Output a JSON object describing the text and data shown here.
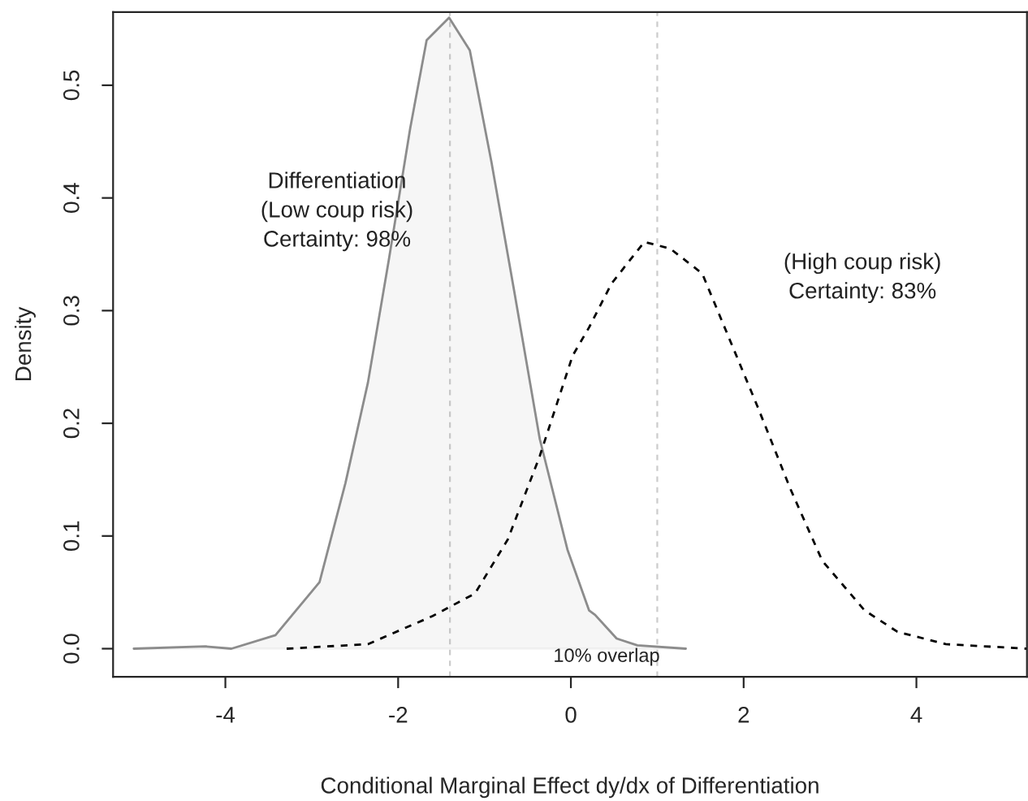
{
  "chart_data": {
    "type": "line",
    "xlabel": "Conditional Marginal Effect dy/dx of Differentiation",
    "ylabel": "Density",
    "xlim": [
      -5.3,
      5.28
    ],
    "ylim": [
      -0.025,
      0.565
    ],
    "xticks": [
      -4,
      -2,
      0,
      2,
      4
    ],
    "yticks": [
      {
        "value": 0,
        "label": "0.0"
      },
      {
        "value": 0.1,
        "label": "0.1"
      },
      {
        "value": 0.2,
        "label": "0.2"
      },
      {
        "value": 0.3,
        "label": "0.3"
      },
      {
        "value": 0.4,
        "label": "0.4"
      },
      {
        "value": 0.5,
        "label": "0.5"
      }
    ],
    "series": [
      {
        "type": "area",
        "color": "#8c8c8c",
        "line_style": "solid",
        "x": [
          -5.06,
          -4.23,
          -3.93,
          -3.42,
          -2.91,
          -2.61,
          -2.35,
          -2.11,
          -1.86,
          -1.67,
          -1.41,
          -1.17,
          -0.92,
          -0.66,
          -0.36,
          -0.04,
          0.21,
          0.28,
          0.53,
          0.77,
          1.33
        ],
        "values": [
          0,
          0.002,
          0,
          0.012,
          0.059,
          0.147,
          0.236,
          0.344,
          0.462,
          0.54,
          0.56,
          0.531,
          0.432,
          0.319,
          0.186,
          0.088,
          0.034,
          0.03,
          0.009,
          0.003,
          0
        ]
      },
      {
        "type": "line",
        "color": "#000000",
        "line_style": "dashed",
        "x": [
          -3.29,
          -2.35,
          -1.6,
          -1.11,
          -0.73,
          -0.36,
          0.02,
          0.21,
          0.47,
          0.85,
          1.15,
          1.52,
          1.84,
          2.16,
          2.54,
          2.91,
          3.4,
          3.78,
          4.34,
          5.28
        ],
        "values": [
          0,
          0.004,
          0.029,
          0.049,
          0.097,
          0.171,
          0.26,
          0.285,
          0.324,
          0.361,
          0.355,
          0.333,
          0.274,
          0.215,
          0.142,
          0.078,
          0.034,
          0.015,
          0.004,
          0
        ]
      }
    ],
    "ref_lines": [
      {
        "axis": "x",
        "value": -1.4,
        "color": "#cccccc",
        "line_style": "dashed"
      },
      {
        "axis": "x",
        "value": 1.0,
        "color": "#cccccc",
        "line_style": "dashed"
      }
    ],
    "annotations": [
      "Differentiation\n(Low coup risk)\nCertainty: 98%",
      "(High coup risk)\nCertainty: 83%",
      "10% overlap"
    ],
    "grid": false,
    "legend": false
  }
}
